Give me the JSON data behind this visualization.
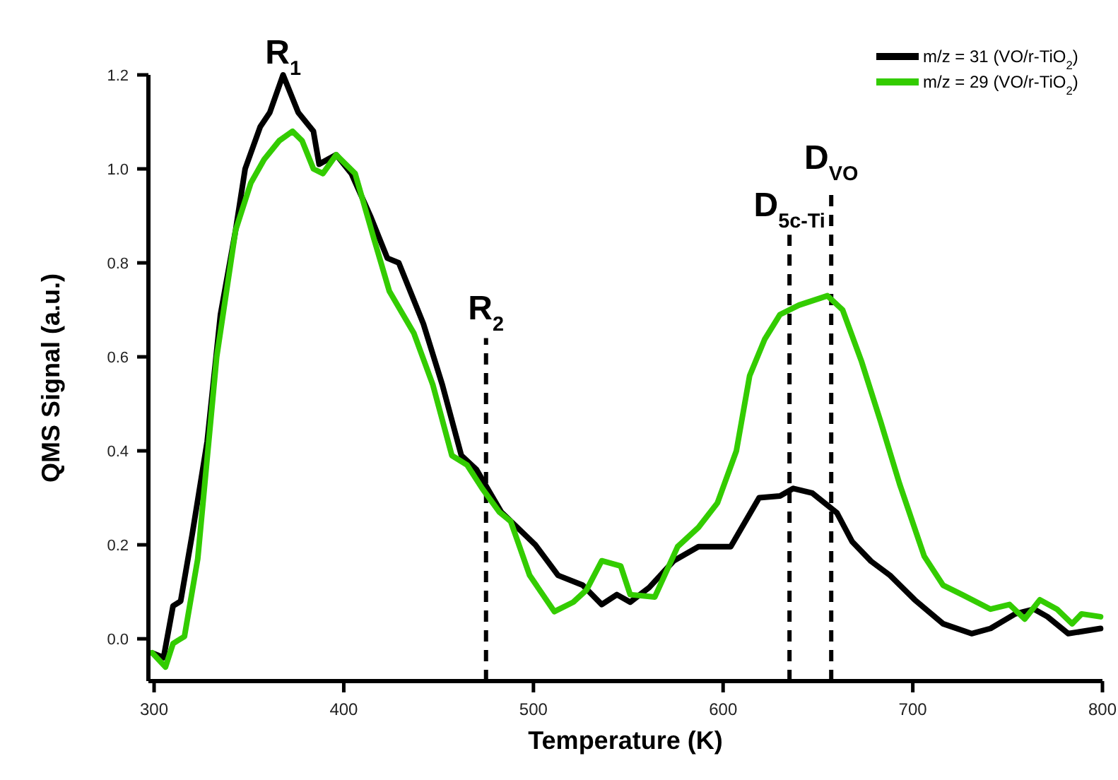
{
  "chart_data": {
    "type": "line",
    "xlabel": "Temperature (K)",
    "ylabel": "QMS Signal (a.u.)",
    "xlim": [
      297,
      800
    ],
    "xticks": [
      300,
      400,
      500,
      600,
      700,
      800
    ],
    "ylim": [
      -0.09,
      1.2
    ],
    "yticks": [
      {
        "value": 0,
        "label": "0.0"
      },
      {
        "value": 0.2,
        "label": "0.2"
      },
      {
        "value": 0.4,
        "label": "0.4"
      },
      {
        "value": 0.6,
        "label": "0.6"
      },
      {
        "value": 0.8,
        "label": "0.8"
      },
      {
        "value": 1,
        "label": "1.0"
      },
      {
        "value": 1.2,
        "label": "1.2"
      }
    ],
    "grid": false,
    "legend": "top right",
    "line_style": "solid",
    "marker": "none",
    "series": [
      {
        "name": "m/z = 31 (VO/r-TiO$_{2}$)",
        "color": "#000000",
        "x": [
          299,
          305,
          310,
          314,
          320,
          328,
          335,
          343,
          348,
          356,
          361,
          368,
          376,
          384,
          387,
          396,
          404,
          414,
          423,
          429,
          442,
          452,
          462,
          470,
          483,
          501,
          513,
          526,
          536,
          544,
          551,
          561,
          574,
          587,
          604,
          619,
          630,
          637,
          647,
          660,
          668,
          678,
          688,
          701,
          716,
          731,
          741,
          754,
          764,
          771,
          782,
          799
        ],
        "values": [
          -0.03,
          -0.04,
          0.07,
          0.08,
          0.22,
          0.42,
          0.69,
          0.87,
          1.0,
          1.09,
          1.12,
          1.2,
          1.12,
          1.08,
          1.01,
          1.03,
          0.99,
          0.9,
          0.81,
          0.8,
          0.67,
          0.54,
          0.39,
          0.36,
          0.27,
          0.2,
          0.135,
          0.114,
          0.073,
          0.094,
          0.078,
          0.109,
          0.166,
          0.196,
          0.196,
          0.3,
          0.304,
          0.32,
          0.31,
          0.268,
          0.207,
          0.165,
          0.135,
          0.083,
          0.032,
          0.011,
          0.022,
          0.053,
          0.063,
          0.047,
          0.011,
          0.022
        ]
      },
      {
        "name": "m/z = 29 (VO/r-TiO$_{2}$)",
        "color": "#33cc00",
        "x": [
          299,
          306,
          310,
          316,
          323,
          333,
          343,
          351,
          358,
          366,
          373,
          378,
          384,
          389,
          396,
          406,
          416,
          424,
          437,
          447,
          457,
          465,
          473,
          482,
          488,
          498,
          511,
          521,
          528,
          536,
          546,
          551,
          564,
          576,
          587,
          597,
          607,
          614,
          622,
          630,
          640,
          655,
          663,
          673,
          683,
          693,
          706,
          716,
          726,
          741,
          751,
          759,
          767,
          776,
          784,
          789,
          799
        ],
        "values": [
          -0.03,
          -0.06,
          -0.01,
          0.005,
          0.17,
          0.6,
          0.87,
          0.97,
          1.02,
          1.06,
          1.08,
          1.06,
          1.0,
          0.99,
          1.03,
          0.99,
          0.85,
          0.74,
          0.65,
          0.54,
          0.39,
          0.37,
          0.32,
          0.27,
          0.25,
          0.135,
          0.058,
          0.078,
          0.104,
          0.166,
          0.155,
          0.094,
          0.089,
          0.196,
          0.237,
          0.289,
          0.4,
          0.56,
          0.638,
          0.69,
          0.71,
          0.73,
          0.7,
          0.59,
          0.463,
          0.33,
          0.176,
          0.114,
          0.094,
          0.063,
          0.073,
          0.042,
          0.083,
          0.063,
          0.032,
          0.053,
          0.047
        ]
      }
    ],
    "ref_lines": [
      {
        "axis": "x",
        "value": 475,
        "label": "R$_{2}$",
        "line_style": "dashed",
        "color": "#000000"
      },
      {
        "axis": "x",
        "value": 635,
        "label": "D$_{5c-Ti}$",
        "line_style": "dashed",
        "color": "#000000"
      },
      {
        "axis": "x",
        "value": 657,
        "label": "D$_{VO}$",
        "line_style": "dashed",
        "color": "#000000"
      }
    ],
    "annotations": [
      {
        "text": "R$_{1}$",
        "x": 368,
        "y": 1.2
      }
    ]
  }
}
